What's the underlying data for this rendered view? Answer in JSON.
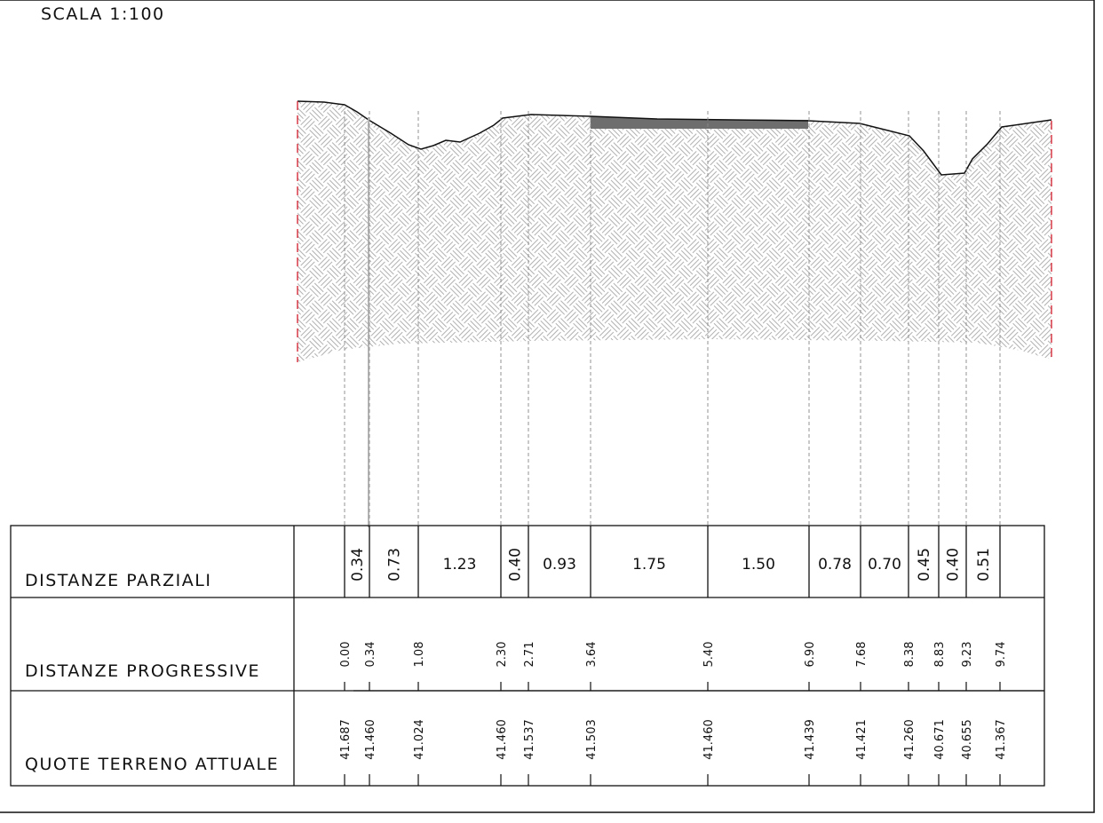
{
  "title": "SCALA 1:100",
  "rows": {
    "parziali": "DISTANZE PARZIALI",
    "progressive": "DISTANZE PROGRESSIVE",
    "quote": "QUOTE TERRENO ATTUALE"
  },
  "colors": {
    "line": "#111111",
    "hatch": "#b0b0b0",
    "dash": "#888888",
    "boundary": "#d11a2a",
    "pavement": "#6e6e6e"
  },
  "stations": [
    {
      "prog": "0.00",
      "quota": "41.687"
    },
    {
      "prog": "0.34",
      "quota": "41.460"
    },
    {
      "prog": "1.08",
      "quota": "41.024"
    },
    {
      "prog": "2.30",
      "quota": "41.460"
    },
    {
      "prog": "2.71",
      "quota": "41.537"
    },
    {
      "prog": "3.64",
      "quota": "41.503"
    },
    {
      "prog": "5.40",
      "quota": "41.460"
    },
    {
      "prog": "6.90",
      "quota": "41.439"
    },
    {
      "prog": "7.68",
      "quota": "41.421"
    },
    {
      "prog": "8.38",
      "quota": "41.260"
    },
    {
      "prog": "8.83",
      "quota": "40.671"
    },
    {
      "prog": "9.23",
      "quota": "40.655"
    },
    {
      "prog": "9.74",
      "quota": "41.367"
    }
  ],
  "partials": [
    {
      "value": "0.34",
      "rotated": true
    },
    {
      "value": "0.73",
      "rotated": true
    },
    {
      "value": "1.23",
      "rotated": false
    },
    {
      "value": "0.40",
      "rotated": true
    },
    {
      "value": "0.93",
      "rotated": false
    },
    {
      "value": "1.75",
      "rotated": false
    },
    {
      "value": "1.50",
      "rotated": false
    },
    {
      "value": "0.78",
      "rotated": false
    },
    {
      "value": "0.70",
      "rotated": false
    },
    {
      "value": "0.45",
      "rotated": true
    },
    {
      "value": "0.40",
      "rotated": true
    },
    {
      "value": "0.51",
      "rotated": true
    }
  ]
}
